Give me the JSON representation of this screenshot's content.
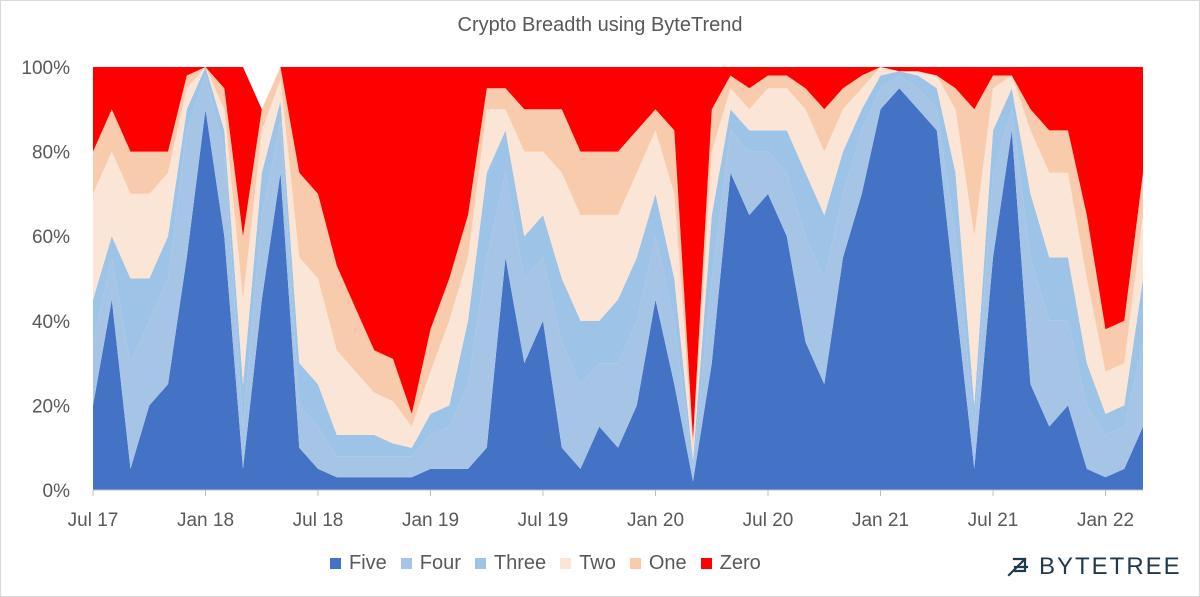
{
  "chart_data": {
    "type": "area",
    "stacked": true,
    "percent": true,
    "title": "Crypto Breadth using ByteTrend",
    "xlabel": "",
    "ylabel": "",
    "ylim": [
      0,
      100
    ],
    "y_ticks": [
      "0%",
      "20%",
      "40%",
      "60%",
      "80%",
      "100%"
    ],
    "x_ticks": [
      "Jul 17",
      "Jan 18",
      "Jul 18",
      "Jan 19",
      "Jul 19",
      "Jan 20",
      "Jul 20",
      "Jan 21",
      "Jul 21",
      "Jan 22"
    ],
    "legend_position": "bottom",
    "colors": {
      "Five": "#4472c4",
      "Four": "#a6c4e6",
      "Three": "#9dc3e6",
      "Two": "#fbe5d6",
      "One": "#f8cbad",
      "Zero": "#ff0000"
    },
    "x": [
      "Jul 17",
      "Aug 17",
      "Sep 17",
      "Oct 17",
      "Nov 17",
      "Dec 17",
      "Jan 18",
      "Feb 18",
      "Mar 18",
      "Apr 18",
      "May 18",
      "Jun 18",
      "Jul 18",
      "Aug 18",
      "Sep 18",
      "Oct 18",
      "Nov 18",
      "Dec 18",
      "Jan 19",
      "Feb 19",
      "Mar 19",
      "Apr 19",
      "May 19",
      "Jun 19",
      "Jul 19",
      "Aug 19",
      "Sep 19",
      "Oct 19",
      "Nov 19",
      "Dec 19",
      "Jan 20",
      "Feb 20",
      "Mar 20",
      "Apr 20",
      "May 20",
      "Jun 20",
      "Jul 20",
      "Aug 20",
      "Sep 20",
      "Oct 20",
      "Nov 20",
      "Dec 20",
      "Jan 21",
      "Feb 21",
      "Mar 21",
      "Apr 21",
      "May 21",
      "Jun 21",
      "Jul 21",
      "Aug 21",
      "Sep 21",
      "Oct 21",
      "Nov 21",
      "Dec 21",
      "Jan 22",
      "Feb 22",
      "Mar 22"
    ],
    "series": [
      {
        "name": "Five",
        "values": [
          20,
          45,
          5,
          20,
          25,
          55,
          90,
          60,
          5,
          45,
          75,
          10,
          5,
          3,
          3,
          3,
          3,
          3,
          5,
          5,
          5,
          10,
          55,
          30,
          40,
          10,
          5,
          15,
          10,
          20,
          45,
          25,
          2,
          30,
          75,
          65,
          70,
          60,
          35,
          25,
          55,
          70,
          90,
          95,
          90,
          85,
          45,
          5,
          55,
          85,
          25,
          15,
          20,
          5,
          3,
          5,
          15
        ]
      },
      {
        "name": "Four",
        "values": [
          15,
          10,
          25,
          20,
          25,
          30,
          8,
          20,
          10,
          20,
          12,
          10,
          10,
          5,
          5,
          5,
          5,
          5,
          8,
          10,
          20,
          45,
          20,
          20,
          15,
          25,
          20,
          15,
          20,
          20,
          15,
          15,
          3,
          20,
          10,
          15,
          10,
          15,
          25,
          25,
          15,
          15,
          5,
          3,
          5,
          5,
          15,
          10,
          20,
          5,
          30,
          25,
          20,
          15,
          10,
          10,
          20
        ]
      },
      {
        "name": "Three",
        "values": [
          10,
          5,
          20,
          10,
          10,
          5,
          2,
          5,
          10,
          10,
          5,
          10,
          10,
          5,
          5,
          5,
          3,
          2,
          5,
          5,
          15,
          20,
          10,
          10,
          10,
          15,
          15,
          10,
          15,
          15,
          10,
          10,
          2,
          15,
          5,
          5,
          5,
          10,
          15,
          15,
          10,
          5,
          3,
          1,
          3,
          5,
          15,
          5,
          10,
          5,
          15,
          15,
          15,
          10,
          5,
          5,
          15
        ]
      },
      {
        "name": "Two",
        "values": [
          25,
          20,
          20,
          20,
          15,
          5,
          0,
          5,
          20,
          10,
          5,
          25,
          25,
          20,
          15,
          10,
          10,
          5,
          10,
          20,
          15,
          15,
          5,
          20,
          15,
          25,
          25,
          25,
          20,
          20,
          15,
          20,
          3,
          15,
          5,
          5,
          10,
          10,
          15,
          15,
          10,
          5,
          2,
          0,
          1,
          3,
          15,
          40,
          10,
          3,
          15,
          20,
          20,
          20,
          10,
          10,
          15
        ]
      },
      {
        "name": "One",
        "values": [
          10,
          10,
          10,
          10,
          5,
          3,
          0,
          5,
          15,
          5,
          3,
          20,
          20,
          20,
          15,
          10,
          10,
          3,
          10,
          10,
          10,
          5,
          5,
          10,
          10,
          15,
          15,
          15,
          15,
          10,
          5,
          15,
          2,
          10,
          3,
          5,
          3,
          3,
          5,
          10,
          5,
          3,
          0,
          0,
          0,
          0,
          5,
          30,
          3,
          0,
          5,
          10,
          10,
          15,
          10,
          10,
          10
        ]
      },
      {
        "name": "Zero",
        "values": [
          20,
          10,
          20,
          20,
          20,
          2,
          0,
          5,
          40,
          0,
          0,
          25,
          30,
          47,
          57,
          67,
          69,
          82,
          62,
          50,
          35,
          5,
          5,
          10,
          10,
          10,
          20,
          20,
          20,
          15,
          10,
          15,
          88,
          10,
          2,
          5,
          2,
          2,
          5,
          10,
          5,
          2,
          0,
          1,
          1,
          2,
          5,
          10,
          2,
          2,
          10,
          15,
          15,
          35,
          62,
          60,
          25
        ]
      }
    ]
  }
}
